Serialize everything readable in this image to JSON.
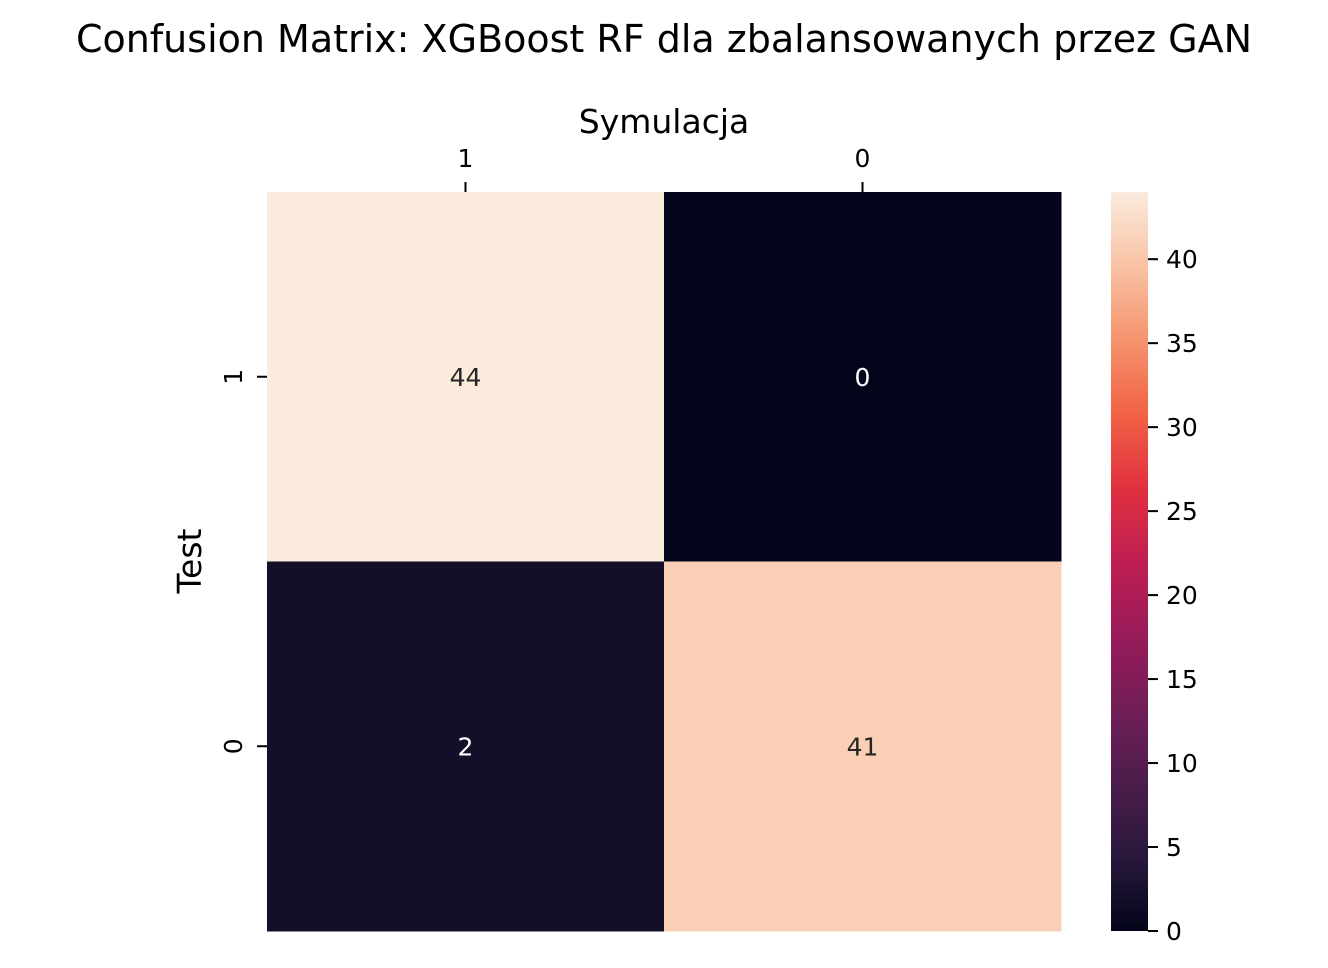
{
  "chart_data": {
    "type": "heatmap",
    "title": "Confusion Matrix: XGBoost RF dla zbalansowanych przez GAN",
    "xlabel": "Symulacja",
    "ylabel": "Test",
    "x_categories": [
      "1",
      "0"
    ],
    "y_categories": [
      "1",
      "0"
    ],
    "values": [
      [
        44,
        0
      ],
      [
        2,
        41
      ]
    ],
    "colorbar": {
      "min": 0,
      "max": 44,
      "ticks": [
        0,
        5,
        10,
        15,
        20,
        25,
        30,
        35,
        40
      ],
      "colormap": "rocket"
    },
    "xaxis_position": "top",
    "grid": false
  }
}
